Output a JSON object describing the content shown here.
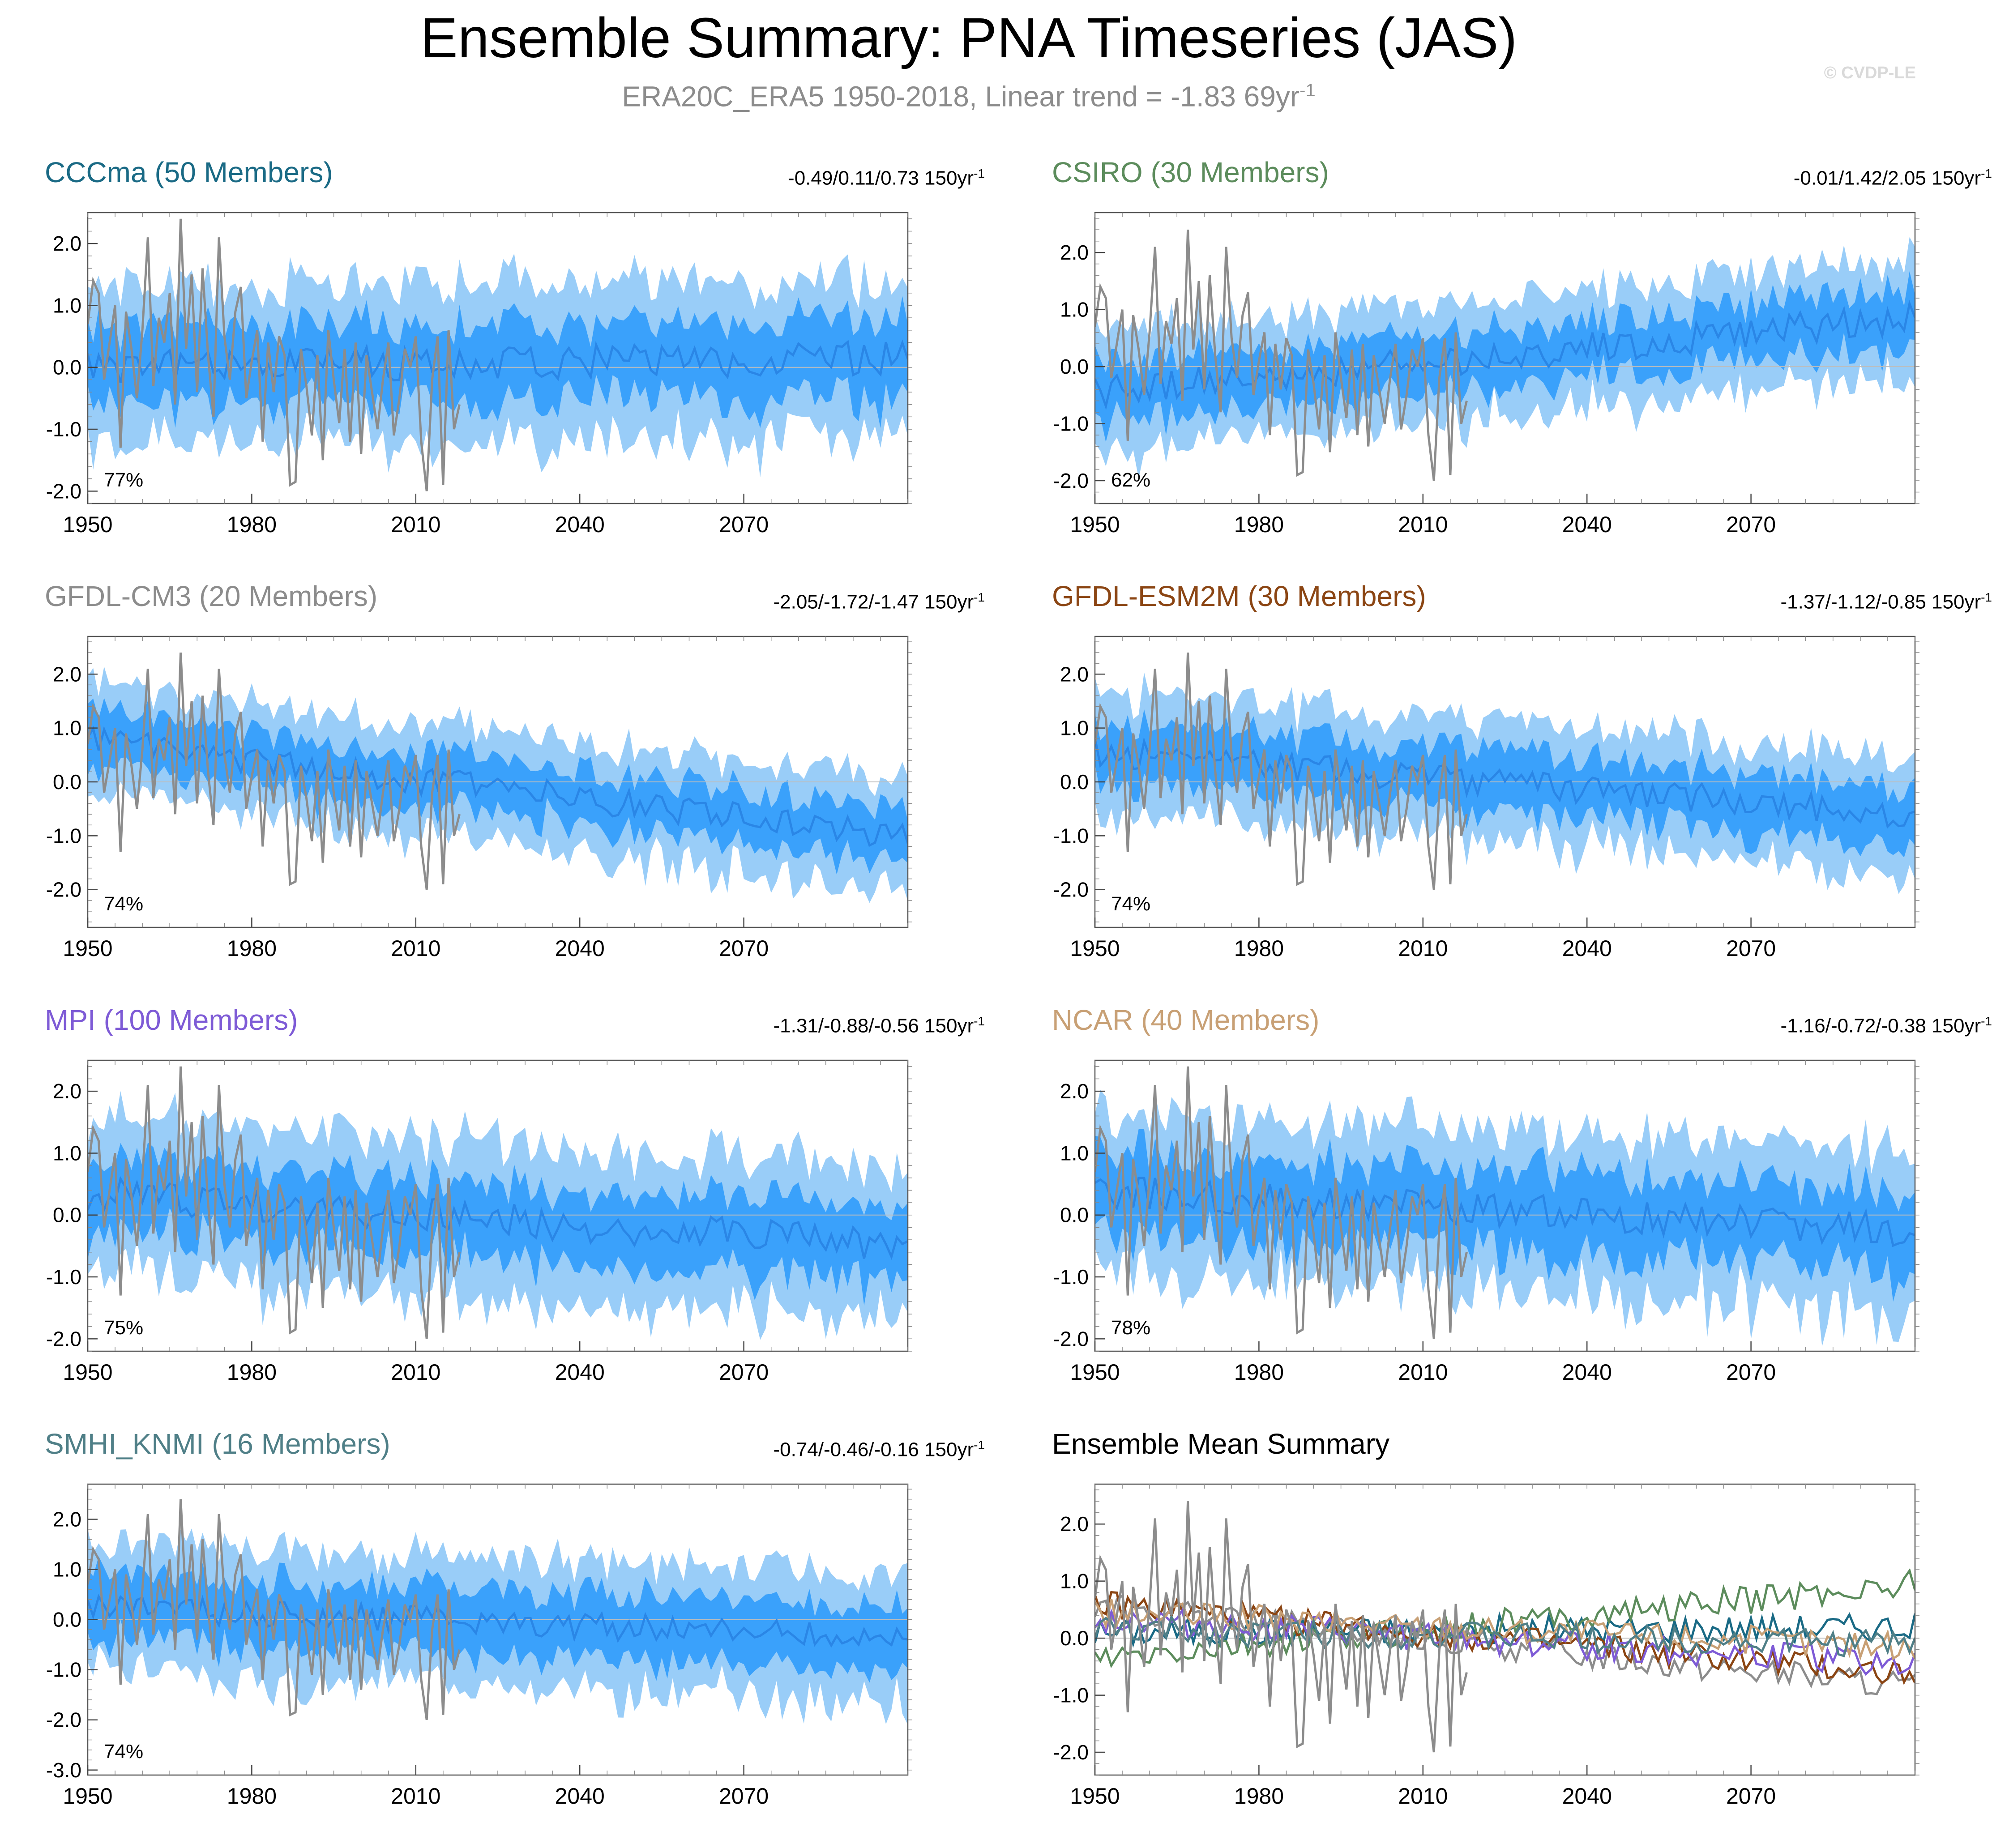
{
  "title": "Ensemble Summary: PNA Timeseries (JAS)",
  "subtitle": {
    "text": "ERA20C_ERA5 1950-2018, Linear trend = -1.83 69yr",
    "sup": "-1"
  },
  "copyright": "© CVDP-LE",
  "colors": {
    "outer_band": "#99cdf8",
    "inner_band": "#3aa1fb",
    "ens_mean": "#2a86e6",
    "observations": "#8c8c8c",
    "zero_line": "#bdbdbd"
  },
  "chart_data": [
    {
      "type": "area",
      "name": "CCCma (50 Members)",
      "label": "CCCma",
      "members": "50 Members",
      "color": "#1a6a85",
      "trend": "-0.49/0.11/0.73 150yr",
      "trend_sup": "-1",
      "percent": "77%",
      "ylim": [
        -2.2,
        2.5
      ],
      "yticks": [
        "2.0",
        "1.0",
        "0.0",
        "-1.0",
        "-2.0"
      ],
      "ytick_values": [
        2,
        1,
        0,
        -1,
        -2
      ],
      "xlim": [
        1950,
        2100
      ],
      "xticks": [
        "1950",
        "1980",
        "2010",
        "2040",
        "2070"
      ],
      "xtick_values": [
        1950,
        1980,
        2010,
        2040,
        2070
      ],
      "mean_start": 0.0,
      "mean_end": 0.15,
      "inner_half": 0.62,
      "outer_half": 1.28,
      "seed": 11
    },
    {
      "type": "area",
      "name": "CSIRO (30 Members)",
      "label": "CSIRO",
      "members": "30 Members",
      "color": "#5c8c5c",
      "trend": "-0.01/1.42/2.05 150yr",
      "trend_sup": "-1",
      "percent": "62%",
      "ylim": [
        -2.4,
        2.7
      ],
      "yticks": [
        "2.0",
        "1.0",
        "0.0",
        "-1.0",
        "-2.0"
      ],
      "ytick_values": [
        2,
        1,
        0,
        -1,
        -2
      ],
      "xlim": [
        1950,
        2100
      ],
      "xticks": [
        "1950",
        "1980",
        "2010",
        "2040",
        "2070"
      ],
      "xtick_values": [
        1950,
        1980,
        2010,
        2040,
        2070
      ],
      "mean_start": -0.45,
      "mean_end": 0.85,
      "inner_half": 0.5,
      "outer_half": 1.05,
      "seed": 23
    },
    {
      "type": "area",
      "name": "GFDL-CM3 (20 Members)",
      "label": "GFDL-CM3",
      "members": "20 Members",
      "color": "#8c8c8c",
      "trend": "-2.05/-1.72/-1.47 150yr",
      "trend_sup": "-1",
      "percent": "74%",
      "ylim": [
        -2.7,
        2.7
      ],
      "yticks": [
        "2.0",
        "1.0",
        "0.0",
        "-1.0",
        "-2.0"
      ],
      "ytick_values": [
        2,
        1,
        0,
        -1,
        -2
      ],
      "xlim": [
        1950,
        2100
      ],
      "xticks": [
        "1950",
        "1980",
        "2010",
        "2040",
        "2070"
      ],
      "xtick_values": [
        1950,
        1980,
        2010,
        2040,
        2070
      ],
      "mean_start": 0.75,
      "mean_end": -1.0,
      "inner_half": 0.5,
      "outer_half": 1.05,
      "seed": 37
    },
    {
      "type": "area",
      "name": "GFDL-ESM2M (30 Members)",
      "label": "GFDL-ESM2M",
      "members": "30 Members",
      "color": "#8b4513",
      "trend": "-1.37/-1.12/-0.85 150yr",
      "trend_sup": "-1",
      "percent": "74%",
      "ylim": [
        -2.7,
        2.7
      ],
      "yticks": [
        "2.0",
        "1.0",
        "0.0",
        "-1.0",
        "-2.0"
      ],
      "ytick_values": [
        2,
        1,
        0,
        -1,
        -2
      ],
      "xlim": [
        1950,
        2100
      ],
      "xticks": [
        "1950",
        "1980",
        "2010",
        "2040",
        "2070"
      ],
      "xtick_values": [
        1950,
        1980,
        2010,
        2040,
        2070
      ],
      "mean_start": 0.55,
      "mean_end": -0.6,
      "inner_half": 0.55,
      "outer_half": 1.1,
      "seed": 41
    },
    {
      "type": "area",
      "name": "MPI (100 Members)",
      "label": "MPI",
      "members": "100 Members",
      "color": "#7e5bd6",
      "trend": "-1.31/-0.88/-0.56 150yr",
      "trend_sup": "-1",
      "percent": "75%",
      "ylim": [
        -2.2,
        2.5
      ],
      "yticks": [
        "2.0",
        "1.0",
        "0.0",
        "-1.0",
        "-2.0"
      ],
      "ytick_values": [
        2,
        1,
        0,
        -1,
        -2
      ],
      "xlim": [
        1950,
        2100
      ],
      "xticks": [
        "1950",
        "1980",
        "2010",
        "2040",
        "2070"
      ],
      "xtick_values": [
        1950,
        1980,
        2010,
        2040,
        2070
      ],
      "mean_start": 0.35,
      "mean_end": -0.5,
      "inner_half": 0.6,
      "outer_half": 1.25,
      "seed": 53
    },
    {
      "type": "area",
      "name": "NCAR (40 Members)",
      "label": "NCAR",
      "members": "40 Members",
      "color": "#c8a075",
      "trend": "-1.16/-0.72/-0.38 150yr",
      "trend_sup": "-1",
      "percent": "78%",
      "ylim": [
        -2.2,
        2.5
      ],
      "yticks": [
        "2.0",
        "1.0",
        "0.0",
        "-1.0",
        "-2.0"
      ],
      "ytick_values": [
        2,
        1,
        0,
        -1,
        -2
      ],
      "xlim": [
        1950,
        2100
      ],
      "xticks": [
        "1950",
        "1980",
        "2010",
        "2040",
        "2070"
      ],
      "xtick_values": [
        1950,
        1980,
        2010,
        2040,
        2070
      ],
      "mean_start": 0.4,
      "mean_end": -0.25,
      "inner_half": 0.65,
      "outer_half": 1.3,
      "seed": 67
    },
    {
      "type": "area",
      "name": "SMHI_KNMI (16 Members)",
      "label": "SMHI_KNMI",
      "members": "16 Members",
      "color": "#4f7f87",
      "trend": "-0.74/-0.46/-0.16 150yr",
      "trend_sup": "-1",
      "percent": "74%",
      "ylim": [
        -3.1,
        2.7
      ],
      "yticks": [
        "2.0",
        "1.0",
        "0.0",
        "-1.0",
        "-2.0",
        "-3.0"
      ],
      "ytick_values": [
        2,
        1,
        0,
        -1,
        -2,
        -3
      ],
      "xlim": [
        1950,
        2100
      ],
      "xticks": [
        "1950",
        "1980",
        "2010",
        "2040",
        "2070"
      ],
      "xtick_values": [
        1950,
        1980,
        2010,
        2040,
        2070
      ],
      "mean_start": 0.25,
      "mean_end": -0.35,
      "inner_half": 0.65,
      "outer_half": 1.3,
      "seed": 79
    },
    {
      "type": "line",
      "name": "Ensemble Mean Summary",
      "label": "Ensemble Mean Summary",
      "members": "",
      "color": "#000000",
      "trend": "",
      "trend_sup": "",
      "percent": "",
      "ylim": [
        -2.4,
        2.7
      ],
      "yticks": [
        "2.0",
        "1.0",
        "0.0",
        "-1.0",
        "-2.0"
      ],
      "ytick_values": [
        2,
        1,
        0,
        -1,
        -2
      ],
      "xlim": [
        1950,
        2100
      ],
      "xticks": [
        "1950",
        "1980",
        "2010",
        "2040",
        "2070"
      ],
      "xtick_values": [
        1950,
        1980,
        2010,
        2040,
        2070
      ]
    }
  ],
  "observations": {
    "name": "ERA20C_ERA5",
    "years": [
      1950,
      1951,
      1952,
      1953,
      1954,
      1955,
      1956,
      1957,
      1958,
      1959,
      1960,
      1961,
      1962,
      1963,
      1964,
      1965,
      1966,
      1967,
      1968,
      1969,
      1970,
      1971,
      1972,
      1973,
      1974,
      1975,
      1976,
      1977,
      1978,
      1979,
      1980,
      1981,
      1982,
      1983,
      1984,
      1985,
      1986,
      1987,
      1988,
      1989,
      1990,
      1991,
      1992,
      1993,
      1994,
      1995,
      1996,
      1997,
      1998,
      1999,
      2000,
      2001,
      2002,
      2003,
      2004,
      2005,
      2006,
      2007,
      2008,
      2009,
      2010,
      2011,
      2012,
      2013,
      2014,
      2015,
      2016,
      2017,
      2018
    ],
    "values": [
      0.7,
      1.4,
      1.2,
      -0.2,
      0.4,
      1.0,
      -1.3,
      0.9,
      0.3,
      -0.5,
      0.6,
      2.1,
      -0.3,
      0.8,
      0.4,
      1.2,
      -0.6,
      2.4,
      0.3,
      1.5,
      -0.4,
      1.6,
      0.2,
      -0.8,
      2.1,
      0.5,
      -0.2,
      0.9,
      1.3,
      -0.5,
      0.1,
      0.6,
      -1.2,
      0.4,
      -0.4,
      0.5,
      0.2,
      -1.9,
      -1.85,
      0.3,
      -0.3,
      -1.1,
      0.2,
      -1.5,
      0.6,
      -0.2,
      -0.9,
      0.3,
      -1.2,
      0.4,
      -1.4,
      0.2,
      -0.4,
      -1.0,
      -0.2,
      0.4,
      -1.1,
      -0.5,
      0.3,
      0.0,
      0.5,
      -1.2,
      -2.0,
      -0.2,
      0.5,
      -1.9,
      0.6,
      -1.0,
      -0.6
    ]
  },
  "summary_series": [
    {
      "name": "CCCma",
      "color": "#1a6a85",
      "start": 0.1,
      "end": 0.2,
      "seed": 101
    },
    {
      "name": "CSIRO",
      "color": "#5c8c5c",
      "start": -0.4,
      "end": 0.95,
      "seed": 103
    },
    {
      "name": "GFDL-CM3",
      "color": "#8c8c8c",
      "start": 0.55,
      "end": -0.85,
      "seed": 107
    },
    {
      "name": "GFDL-ESM2M",
      "color": "#8b4513",
      "start": 0.6,
      "end": -0.65,
      "seed": 109
    },
    {
      "name": "MPI",
      "color": "#7e5bd6",
      "start": 0.35,
      "end": -0.45,
      "seed": 113
    },
    {
      "name": "NCAR",
      "color": "#c8a075",
      "start": 0.45,
      "end": -0.15,
      "seed": 127
    },
    {
      "name": "SMHI_KNMI",
      "color": "#4f7f87",
      "start": 0.15,
      "end": -0.1,
      "seed": 131
    }
  ]
}
